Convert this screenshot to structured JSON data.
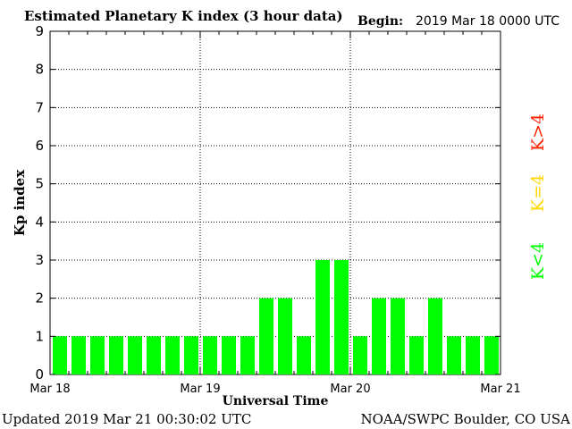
{
  "header": {
    "title": "Estimated Planetary K index (3 hour data)",
    "begin_label": "Begin:",
    "begin_value": "2019 Mar 18 0000 UTC"
  },
  "footer": {
    "updated": "Updated 2019 Mar 21 00:30:02 UTC",
    "source": "NOAA/SWPC Boulder, CO USA"
  },
  "legend": {
    "k_gt4": "K>4",
    "k_eq4": "K=4",
    "k_lt4": "K<4"
  },
  "colors": {
    "low": "#00ff00",
    "mid": "#ffd700",
    "high": "#ff2200",
    "axis": "#000000",
    "grid": "#000000"
  },
  "chart_data": {
    "type": "bar",
    "title": "Estimated Planetary K index (3 hour data)",
    "xlabel": "Universal Time",
    "ylabel": "Kp index",
    "ylim": [
      0,
      9
    ],
    "yticks": [
      "0",
      "1",
      "2",
      "3",
      "4",
      "5",
      "6",
      "7",
      "8",
      "9"
    ],
    "xticks": [
      "Mar 18",
      "Mar 19",
      "Mar 20",
      "Mar 21"
    ],
    "grid": true,
    "interval_hours": 3,
    "values": [
      1,
      1,
      1,
      1,
      1,
      1,
      1,
      1,
      1,
      1,
      1,
      2,
      2,
      1,
      3,
      3,
      1,
      2,
      2,
      1,
      2,
      1,
      1,
      1
    ]
  }
}
